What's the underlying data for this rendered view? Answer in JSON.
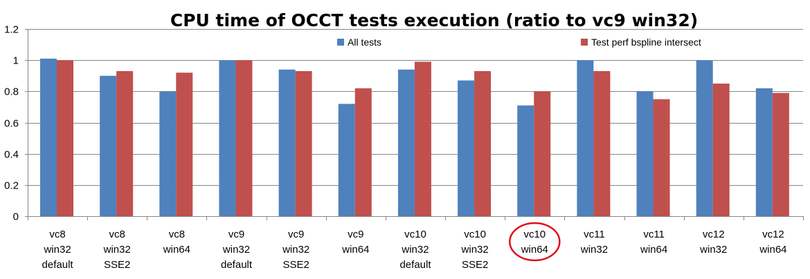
{
  "chart_data": {
    "type": "bar",
    "title": "CPU time of OCCT tests execution (ratio to vc9 win32)",
    "xlabel": "",
    "ylabel": "",
    "ylim": [
      0,
      1.2
    ],
    "yticks": [
      "0",
      "0.2",
      "0.4",
      "0.6",
      "0.8",
      "1",
      "1.2"
    ],
    "grid": true,
    "legend_position": "top",
    "categories": [
      [
        "vc8",
        "win32",
        "default"
      ],
      [
        "vc8",
        "win32",
        "SSE2"
      ],
      [
        "vc8",
        "win64"
      ],
      [
        "vc9",
        "win32",
        "default"
      ],
      [
        "vc9",
        "win32",
        "SSE2"
      ],
      [
        "vc9",
        "win64"
      ],
      [
        "vc10",
        "win32",
        "default"
      ],
      [
        "vc10",
        "win32",
        "SSE2"
      ],
      [
        "vc10",
        "win64"
      ],
      [
        "vc11",
        "win32"
      ],
      [
        "vc11",
        "win64"
      ],
      [
        "vc12",
        "win32"
      ],
      [
        "vc12",
        "win64"
      ]
    ],
    "highlighted_category_index": 8,
    "highlight_color": "#e0101a",
    "series": [
      {
        "name": "All tests",
        "color": "#4f81bd",
        "values": [
          1.01,
          0.9,
          0.8,
          1.0,
          0.94,
          0.72,
          0.94,
          0.87,
          0.71,
          1.0,
          0.8,
          1.0,
          0.82
        ]
      },
      {
        "name": "Test perf bspline intersect",
        "color": "#c0504d",
        "values": [
          1.0,
          0.93,
          0.92,
          1.0,
          0.93,
          0.82,
          0.99,
          0.93,
          0.8,
          0.93,
          0.75,
          0.85,
          0.79
        ]
      }
    ]
  }
}
